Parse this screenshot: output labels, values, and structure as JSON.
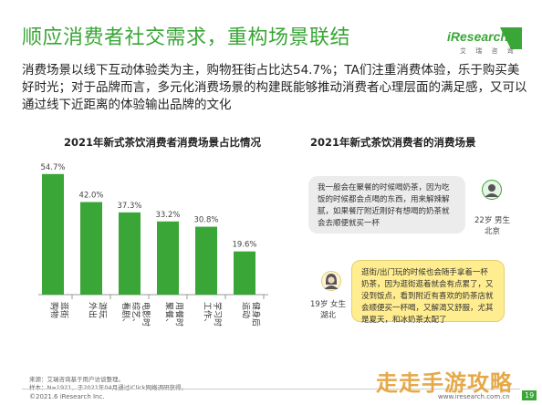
{
  "title": "顺应消费者社交需求，重构场景联结",
  "logo": {
    "word": "iResearch",
    "sub": "艾 瑞 咨 询"
  },
  "intro": "消费场景以线下互动体验类为主，购物狂街占比达54.7%；TA们注重消费体验，乐于购买美好时光；对于品牌而言，多元化消费场景的构建既能够推动消费者心理层面的满足感，又可以通过线下近距离的体验输出品牌的文化",
  "left_chart_title": "2021年新式茶饮消费者消费场景占比情况",
  "right_chart_title": "2021年新式茶饮消费者的消费场景",
  "chart_data": {
    "type": "bar",
    "title": "2021年新式茶饮消费者消费场景占比情况",
    "categories": [
      "购物逛街",
      "外出游玩",
      "看剧、综艺、电影时",
      "聚餐、用餐时",
      "工作、学习时",
      "运动健身后"
    ],
    "category_lines": [
      [
        "购物",
        "逛街"
      ],
      [
        "外出",
        "游玩"
      ],
      [
        "看剧、",
        "综艺、",
        "电影时"
      ],
      [
        "聚餐、",
        "用餐时"
      ],
      [
        "工作、",
        "学习时"
      ],
      [
        "运动",
        "健身后"
      ]
    ],
    "values": [
      54.7,
      42.0,
      37.3,
      33.2,
      30.8,
      19.6
    ],
    "value_labels": [
      "54.7%",
      "42.0%",
      "37.3%",
      "33.2%",
      "30.8%",
      "19.6%"
    ],
    "ylim": [
      0,
      60
    ],
    "bar_color": "#3aa637",
    "grid": false,
    "legend": "none"
  },
  "quotes": [
    {
      "text": "我一般会在聚餐的时候喝奶茶，因为吃饭的时候都会点喝的东西，用来解辣解腻，如果餐厅附近刚好有想喝的奶茶就会去顺便就买一杯",
      "persona": [
        "22岁 男生",
        "北京"
      ]
    },
    {
      "text": "逛街/出门玩的时候也会随手拿着一杯奶茶，因为逛街逛着就会有点累了，又没到饭点，看到附近有喜欢的奶茶店就会顺便买一杯喝，又解渴又舒服，尤其是夏天，和冰奶茶太配了",
      "persona": [
        "19岁 女生",
        "湖北"
      ]
    }
  ],
  "footnotes": [
    "来源：艾瑞咨询基于用户访谈整理。",
    "样本：N=1921，于2021年04月通过iClick网络调研获得。"
  ],
  "footer_left": "©2021.6 iResearch Inc.",
  "footer_right": "www.iresearch.com.cn",
  "page_number": "19",
  "watermark": "走走手游攻略",
  "colors": {
    "brand": "#3aa637",
    "bubble_grey": "#ececec",
    "bubble_yellow": "#ffed8f",
    "watermark": "#e3a23a"
  }
}
